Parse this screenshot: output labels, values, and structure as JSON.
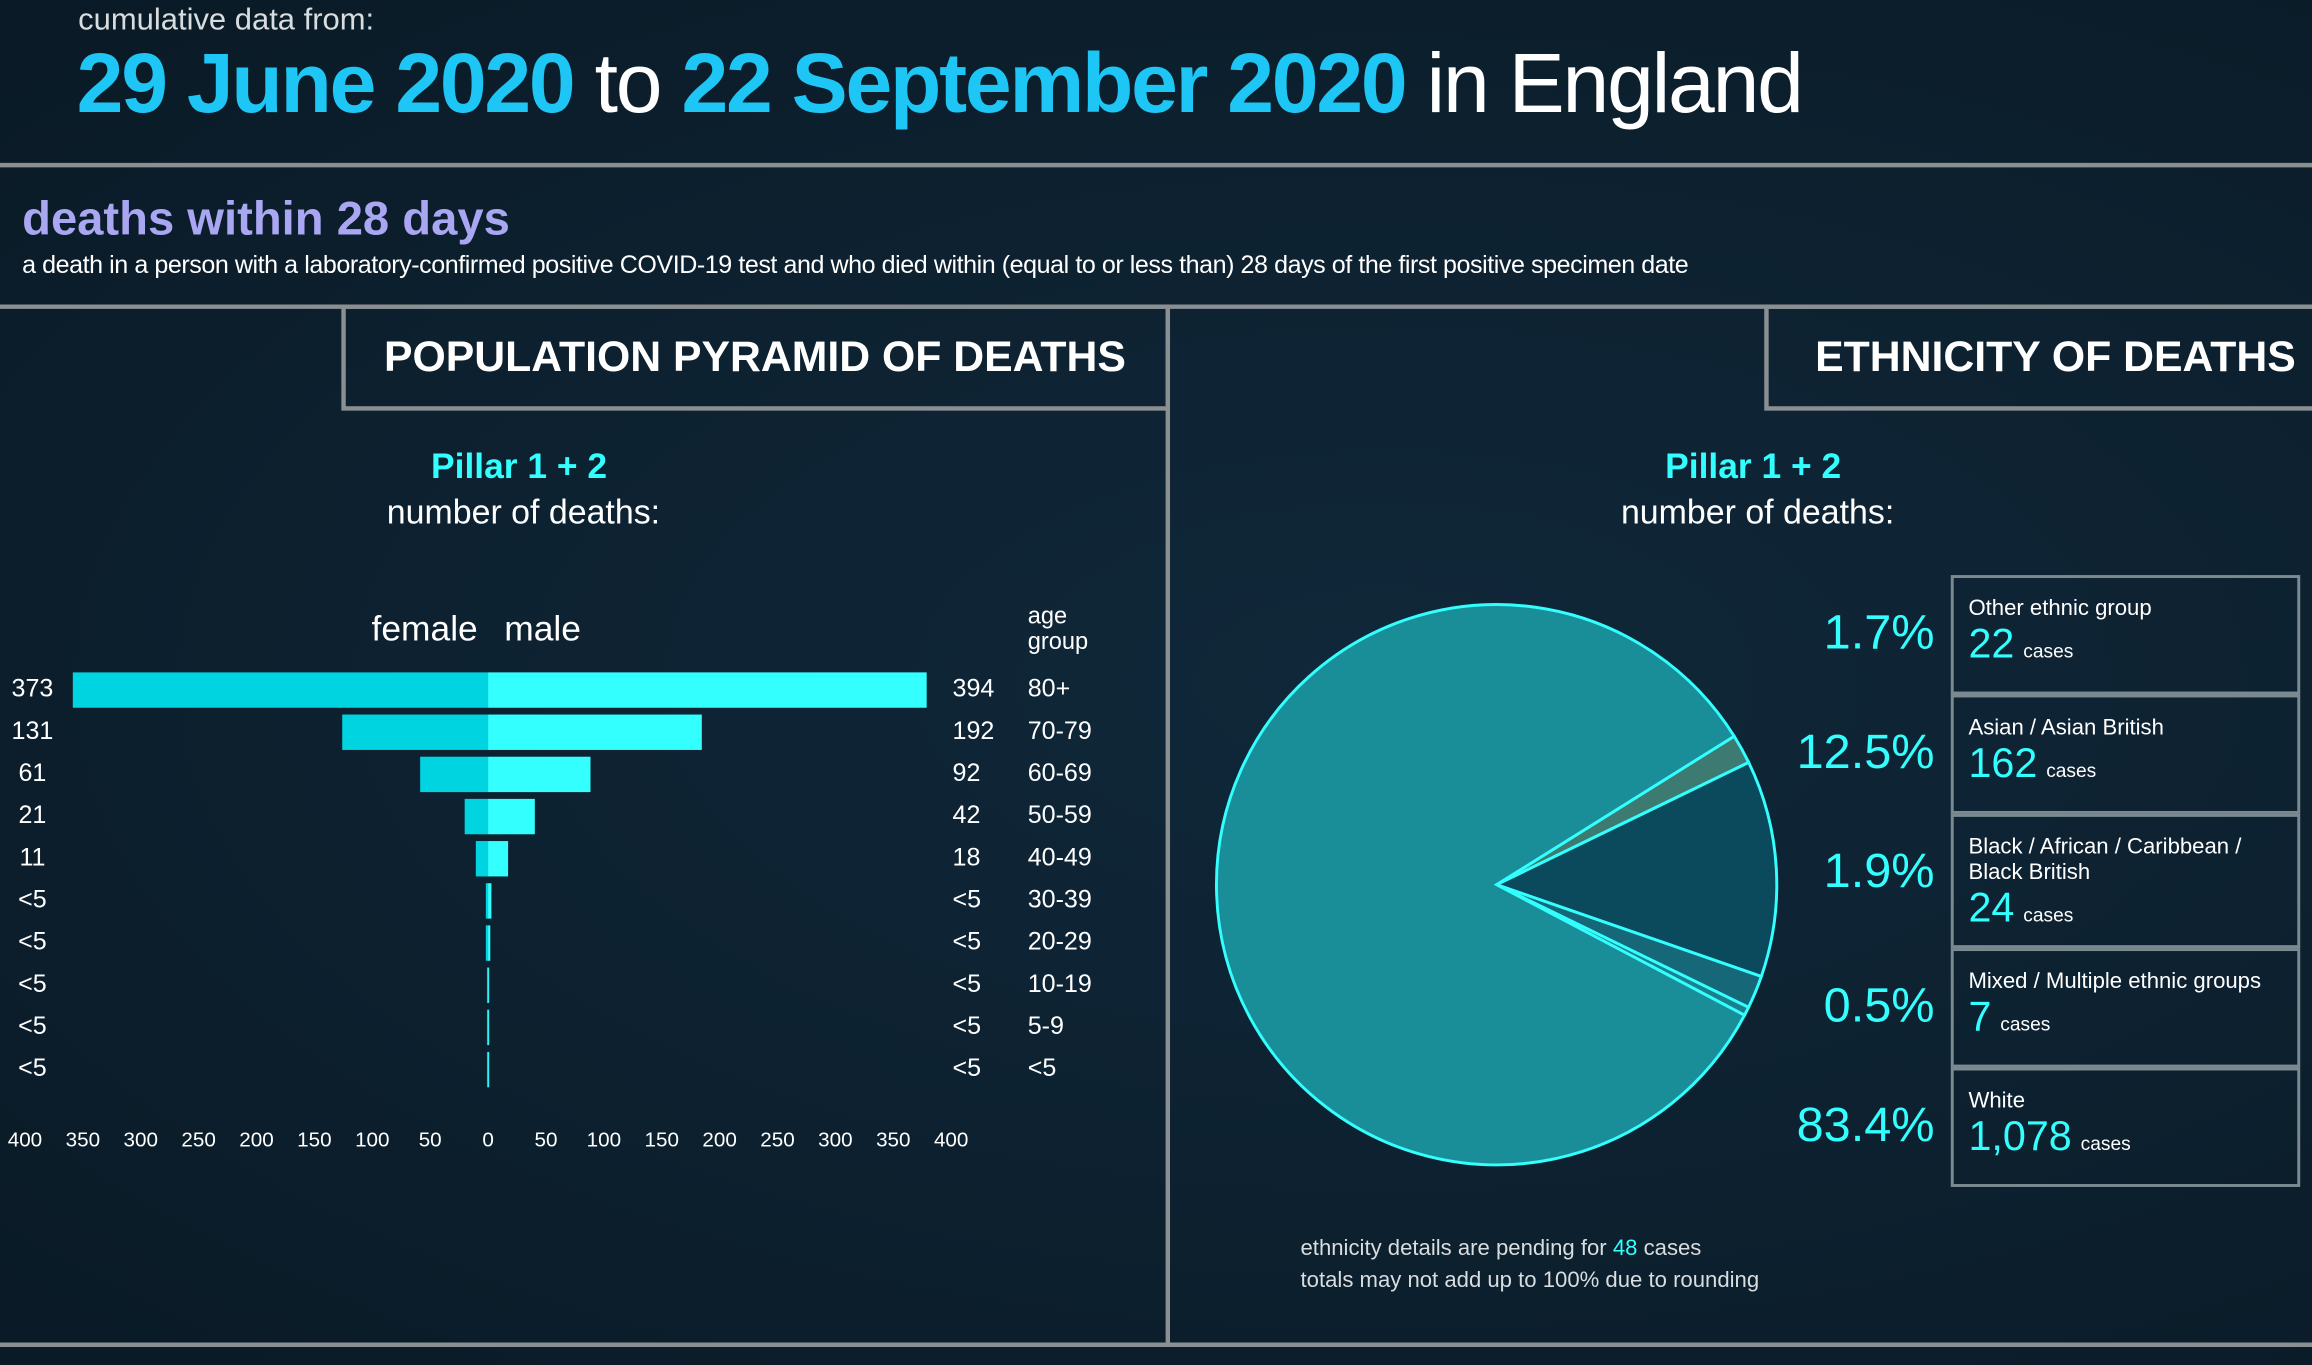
{
  "header": {
    "intro": "cumulative data from:",
    "start": "29 June 2020",
    "joiner": "to",
    "end": "22 September 2020",
    "place": "in England"
  },
  "section": {
    "title": "deaths within 28 days",
    "description": "a death in a person with a laboratory-confirmed positive COVID-19 test and who died within (equal to or less than) 28 days of the first positive specimen date"
  },
  "chart_data": [
    {
      "type": "pyramid",
      "title": "POPULATION PYRAMID OF DEATHS",
      "subtitle": "Pillar 1 + 2",
      "subtitle2": "number of deaths:",
      "category_label": "age group",
      "categories": [
        "80+",
        "70-79",
        "60-69",
        "50-59",
        "40-49",
        "30-39",
        "20-29",
        "10-19",
        "5-9",
        "<5"
      ],
      "series": [
        {
          "name": "female",
          "color": "#00d4e0",
          "values": [
            373,
            131,
            61,
            21,
            11,
            2,
            2,
            1,
            1,
            1
          ],
          "value_labels": [
            "373",
            "131",
            "61",
            "21",
            "11",
            "<5",
            "<5",
            "<5",
            "<5",
            "<5"
          ]
        },
        {
          "name": "male",
          "color": "#33ffff",
          "values": [
            394,
            192,
            92,
            42,
            18,
            3,
            2,
            1,
            1,
            1
          ],
          "value_labels": [
            "394",
            "192",
            "92",
            "42",
            "18",
            "<5",
            "<5",
            "<5",
            "<5",
            "<5"
          ]
        }
      ],
      "xlim": [
        0,
        400
      ],
      "xticks": [
        0,
        50,
        100,
        150,
        200,
        250,
        300,
        350,
        400
      ]
    },
    {
      "type": "pie",
      "title": "ETHNICITY OF DEATHS",
      "subtitle": "Pillar 1 + 2",
      "subtitle2": "number of deaths:",
      "categories": [
        "Other ethnic group",
        "Asian / Asian British",
        "Black / African / Caribbean / Black British",
        "Mixed / Multiple ethnic groups",
        "White"
      ],
      "values": [
        1.7,
        12.5,
        1.9,
        0.5,
        83.4
      ],
      "value_labels": [
        "1.7%",
        "12.5%",
        "1.9%",
        "0.5%",
        "83.4%"
      ],
      "colors": [
        "#3d7a72",
        "#0b4a5c",
        "#166878",
        "#1b7f8c",
        "#1a8e98"
      ],
      "cases": [
        22,
        162,
        24,
        7,
        1078
      ],
      "case_labels": [
        "22",
        "162",
        "24",
        "7",
        "1,078"
      ],
      "case_unit": "cases",
      "note": {
        "pending_text": "ethnicity details are pending for",
        "pending": 48,
        "pending_unit": "cases",
        "rounding": "totals may not add up to 100% due to rounding"
      }
    }
  ]
}
